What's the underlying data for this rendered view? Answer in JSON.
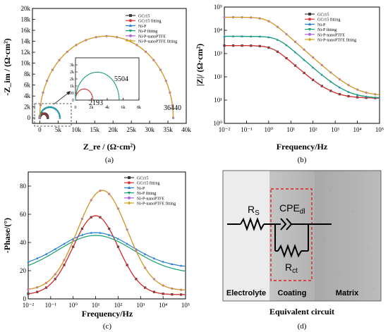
{
  "colors": {
    "gcr15": "#3b3b3b",
    "gcr15_fit": "#e03030",
    "nip": "#2a7fd4",
    "nip_fit": "#18a070",
    "nip_ptfe": "#b066d8",
    "nip_ptfe_fit": "#d4a017",
    "circuit_dash": "#e02020"
  },
  "chart_data": [
    {
      "id": "a",
      "type": "line",
      "panel_label": "(a)",
      "xlabel": "Z_re / (Ω·cm²)",
      "ylabel": "-Z_im / (Ω·cm²)",
      "xlim": [
        -2000,
        40000
      ],
      "ylim": [
        -1000,
        20000
      ],
      "x_ticks": [
        "0",
        "5k",
        "10k",
        "15k",
        "20k",
        "25k",
        "30k",
        "35k",
        "40k"
      ],
      "y_ticks": [
        "0",
        "2k",
        "4k",
        "6k",
        "8k",
        "10k",
        "12k",
        "14k",
        "16k",
        "18k",
        "20k"
      ],
      "legend": [
        "GCr15",
        "GCr15 fitting",
        "Ni-P",
        "Ni-P fitting",
        "Ni-P-nanoPTFE",
        "Ni-P-nanoPTFE fitting"
      ],
      "series": [
        {
          "name": "GCr15",
          "R": 2193,
          "markers": true
        },
        {
          "name": "GCr15 fitting",
          "R": 2193,
          "markers": false
        },
        {
          "name": "Ni-P",
          "R": 5504,
          "markers": true
        },
        {
          "name": "Ni-P fitting",
          "R": 5504,
          "markers": false
        },
        {
          "name": "Ni-P-nanoPTFE",
          "R": 36440,
          "markers": true
        },
        {
          "name": "Ni-P-nanoPTFE fitting",
          "R": 36440,
          "markers": false
        }
      ],
      "annotations": [
        "2193",
        "5504",
        "36440"
      ],
      "inset": {
        "xlim": [
          0,
          8000
        ],
        "ylim": [
          0,
          3000
        ],
        "x_ticks": [
          "0",
          "2k",
          "4k",
          "6k",
          "8k"
        ],
        "y_ticks": [
          "0",
          "500",
          "1k",
          "2k",
          "2k",
          "3k"
        ]
      }
    },
    {
      "id": "b",
      "type": "line",
      "panel_label": "(b)",
      "xlabel": "Frequency/Hz",
      "ylabel": "|Z|/ (Ω·cm²)",
      "x_log": true,
      "y_log": true,
      "xlim": [
        0.01,
        100000
      ],
      "ylim": [
        1,
        100000
      ],
      "x_ticks": [
        "10⁻²",
        "10⁻¹",
        "10⁰",
        "10¹",
        "10²",
        "10³",
        "10⁴",
        "10⁵"
      ],
      "y_ticks": [
        "10⁰",
        "10¹",
        "10²",
        "10³",
        "10⁴",
        "10⁵"
      ],
      "legend": [
        "GCr15",
        "GCr15 fitting",
        "Ni-P",
        "Ni-P fitting",
        "Ni-P-nanoPTFE",
        "Ni-P-nanoPTFE fitting"
      ],
      "series": [
        {
          "name": "GCr15",
          "Rs": 12,
          "R": 2193,
          "fc": 1.5
        },
        {
          "name": "GCr15 fitting",
          "Rs": 12,
          "R": 2193,
          "fc": 1.5
        },
        {
          "name": "Ni-P",
          "Rs": 12,
          "R": 5504,
          "fc": 2.5
        },
        {
          "name": "Ni-P fitting",
          "Rs": 12,
          "R": 5504,
          "fc": 2.5
        },
        {
          "name": "Ni-P-nanoPTFE",
          "Rs": 15,
          "R": 36440,
          "fc": 0.9
        },
        {
          "name": "Ni-P-nanoPTFE fitting",
          "Rs": 15,
          "R": 36440,
          "fc": 0.9
        }
      ]
    },
    {
      "id": "c",
      "type": "line",
      "panel_label": "(c)",
      "xlabel": "Frequency/Hz",
      "ylabel": "-Phase/(°)",
      "x_log": true,
      "xlim": [
        0.01,
        100000
      ],
      "ylim": [
        0,
        90
      ],
      "x_ticks": [
        "10⁻²",
        "10⁻¹",
        "10⁰",
        "10¹",
        "10²",
        "10³",
        "10⁴",
        "10⁵"
      ],
      "y_ticks": [
        "0",
        "20",
        "40",
        "60",
        "80"
      ],
      "legend": [
        "GCr15",
        "GCr15 fitting",
        "Ni-P",
        "Ni-P fitting",
        "Ni-P-nanoPTFE",
        "Ni-P-nanoPTFE fitting"
      ],
      "series": [
        {
          "name": "GCr15",
          "peak": 59,
          "center": 10,
          "width": 1.0,
          "base": 3
        },
        {
          "name": "GCr15 fitting",
          "peak": 59,
          "center": 10,
          "width": 1.0,
          "base": 3
        },
        {
          "name": "Ni-P",
          "peak": 47,
          "center": 10,
          "width": 1.6,
          "base": 22
        },
        {
          "name": "Ni-P fitting",
          "peak": 45,
          "center": 10,
          "width": 1.7,
          "base": 18
        },
        {
          "name": "Ni-P-nanoPTFE",
          "peak": 77,
          "center": 20,
          "width": 1.1,
          "base": 6
        },
        {
          "name": "Ni-P-nanoPTFE fitting",
          "peak": 77,
          "center": 20,
          "width": 1.1,
          "base": 6
        }
      ]
    }
  ],
  "circuit": {
    "panel_label": "(d)",
    "caption": "Equivalent circuit",
    "rs_label": "R",
    "rs_sub": "S",
    "cpe_label": "CPE",
    "cpe_sub": "dl",
    "rct_label": "R",
    "rct_sub": "ct",
    "regions": [
      "Electrolyte",
      "Coating",
      "Matrix"
    ]
  }
}
